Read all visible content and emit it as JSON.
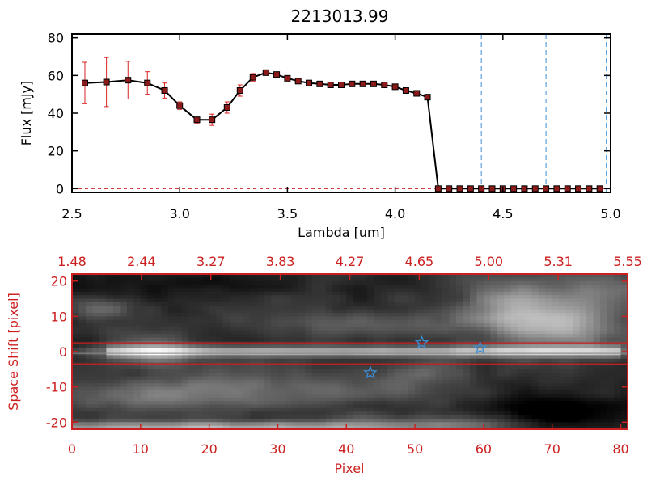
{
  "chart_data": [
    {
      "type": "line",
      "title": "2213013.99",
      "xlabel": "Lambda [um]",
      "ylabel": "Flux [mJy]",
      "xlim": [
        2.5,
        5.0
      ],
      "ylim": [
        -2,
        82
      ],
      "x_ticks": [
        "2.5",
        "3.0",
        "3.5",
        "4.0",
        "4.5",
        "5.0"
      ],
      "y_ticks": [
        "0",
        "20",
        "40",
        "60",
        "80"
      ],
      "colors": {
        "line": "#000000",
        "markers": "#8b1a1a",
        "errorbars": "#dd2222",
        "vlines": "#3a8fd8"
      },
      "vlines": [
        4.4,
        4.7,
        4.98
      ],
      "series": [
        {
          "x": [
            2.56,
            2.66,
            2.76,
            2.85,
            2.93,
            3.0,
            3.08,
            3.15,
            3.22,
            3.28,
            3.34,
            3.4,
            3.45,
            3.5,
            3.55,
            3.6,
            3.65,
            3.7,
            3.75,
            3.8,
            3.85,
            3.9,
            3.95,
            4.0,
            4.05,
            4.1,
            4.15,
            4.2,
            4.25,
            4.3,
            4.35,
            4.4,
            4.45,
            4.5,
            4.55,
            4.6,
            4.65,
            4.7,
            4.75,
            4.8,
            4.85,
            4.9,
            4.95
          ],
          "y": [
            56,
            56.5,
            57.5,
            56,
            52,
            44,
            36.5,
            36.5,
            43,
            52,
            59,
            61.5,
            60.5,
            58.5,
            57,
            56,
            55.5,
            55,
            55,
            55.5,
            55.5,
            55.5,
            55,
            54,
            52,
            50.5,
            48.5,
            0,
            0,
            0,
            0,
            0,
            0,
            0,
            0,
            0,
            0,
            0,
            0,
            0,
            0,
            0,
            0
          ],
          "err": [
            11,
            13,
            10,
            6,
            4,
            2,
            2,
            3,
            3,
            3,
            2,
            1,
            1,
            0.8,
            0.7,
            0.6,
            0.5,
            0.5,
            0.5,
            0.5,
            0.5,
            0.5,
            0.6,
            0.7,
            0.8,
            1,
            1.2,
            0,
            0,
            0,
            0,
            0,
            0,
            0,
            0,
            0,
            0,
            0,
            0,
            0,
            0,
            0,
            0
          ]
        }
      ]
    },
    {
      "type": "heatmap",
      "xlabel": "Pixel",
      "ylabel": "Space Shift [pixel]",
      "xlim": [
        0,
        81
      ],
      "ylim": [
        -22,
        22
      ],
      "x_ticks": [
        "0",
        "10",
        "20",
        "30",
        "40",
        "50",
        "60",
        "70",
        "80"
      ],
      "y_ticks": [
        "-20",
        "-10",
        "0",
        "10",
        "20"
      ],
      "top_ticks": [
        "1.48",
        "2.44",
        "3.27",
        "3.83",
        "4.27",
        "4.65",
        "5.00",
        "5.31",
        "5.55"
      ],
      "colormap": "grayscale",
      "colors": {
        "axes": "#cc2020",
        "hlines": "#cc2020",
        "stars": "#3a8fd8"
      },
      "hlines": [
        2.5,
        -3.5
      ],
      "stars": [
        {
          "x": 51,
          "y": 2.5
        },
        {
          "x": 59.5,
          "y": 1
        },
        {
          "x": 43.5,
          "y": -6
        }
      ]
    }
  ]
}
